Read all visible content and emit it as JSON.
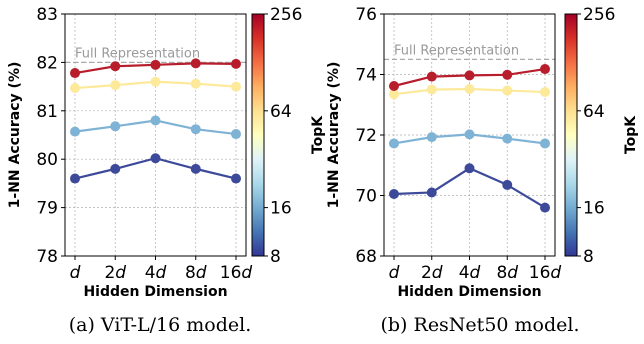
{
  "colors": {
    "colormap": [
      "#313695",
      "#4575b4",
      "#74add1",
      "#abd9e9",
      "#e0f3f8",
      "#ffffbf",
      "#fee090",
      "#fdae61",
      "#f46d43",
      "#d73027",
      "#a50026"
    ],
    "series_by_topk": {
      "8": "#3d4a9a",
      "16": "#7fb3d5",
      "64": "#fde99a",
      "256": "#b81d2c"
    },
    "grid": "#b0b0b0",
    "reference_line": "#a9a9a9"
  },
  "chart_data": [
    {
      "type": "line",
      "caption": "(a) ViT-L/16 model.",
      "xlabel": "Hidden Dimension",
      "ylabel": "1-NN Accuracy (%)",
      "x_ticks": [
        {
          "num": "",
          "var": "d"
        },
        {
          "num": "2",
          "var": "d"
        },
        {
          "num": "4",
          "var": "d"
        },
        {
          "num": "8",
          "var": "d"
        },
        {
          "num": "16",
          "var": "d"
        }
      ],
      "ylim": [
        78,
        83
      ],
      "yticks": [
        "78",
        "79",
        "80",
        "81",
        "82",
        "83"
      ],
      "grid": true,
      "reference_line": {
        "label": "Full Representation",
        "value": 82.0
      },
      "series": [
        {
          "topk": 8,
          "values": [
            79.6,
            79.8,
            80.02,
            79.8,
            79.6
          ]
        },
        {
          "topk": 16,
          "values": [
            80.57,
            80.68,
            80.8,
            80.62,
            80.52
          ]
        },
        {
          "topk": 64,
          "values": [
            81.47,
            81.53,
            81.6,
            81.56,
            81.5
          ]
        },
        {
          "topk": 256,
          "values": [
            81.78,
            81.92,
            81.95,
            81.98,
            81.97
          ]
        }
      ],
      "colorbar": {
        "label": "TopK",
        "ticks": [
          "8",
          "16",
          "64",
          "256"
        ],
        "scale": "log2",
        "range": [
          8,
          256
        ]
      }
    },
    {
      "type": "line",
      "caption": "(b) ResNet50 model.",
      "xlabel": "Hidden Dimension",
      "ylabel": "1-NN Accuracy (%)",
      "x_ticks": [
        {
          "num": "",
          "var": "d"
        },
        {
          "num": "2",
          "var": "d"
        },
        {
          "num": "4",
          "var": "d"
        },
        {
          "num": "8",
          "var": "d"
        },
        {
          "num": "16",
          "var": "d"
        }
      ],
      "ylim": [
        68,
        76
      ],
      "yticks": [
        "68",
        "70",
        "72",
        "74",
        "76"
      ],
      "grid": true,
      "reference_line": {
        "label": "Full Representation",
        "value": 74.5
      },
      "series": [
        {
          "topk": 8,
          "values": [
            70.05,
            70.1,
            70.9,
            70.35,
            69.6
          ]
        },
        {
          "topk": 16,
          "values": [
            71.72,
            71.93,
            72.02,
            71.88,
            71.72
          ]
        },
        {
          "topk": 64,
          "values": [
            73.35,
            73.5,
            73.52,
            73.47,
            73.42
          ]
        },
        {
          "topk": 256,
          "values": [
            73.62,
            73.93,
            73.97,
            73.99,
            74.18
          ]
        }
      ],
      "colorbar": {
        "label": "TopK",
        "ticks": [
          "8",
          "16",
          "64",
          "256"
        ],
        "scale": "log2",
        "range": [
          8,
          256
        ]
      }
    }
  ]
}
